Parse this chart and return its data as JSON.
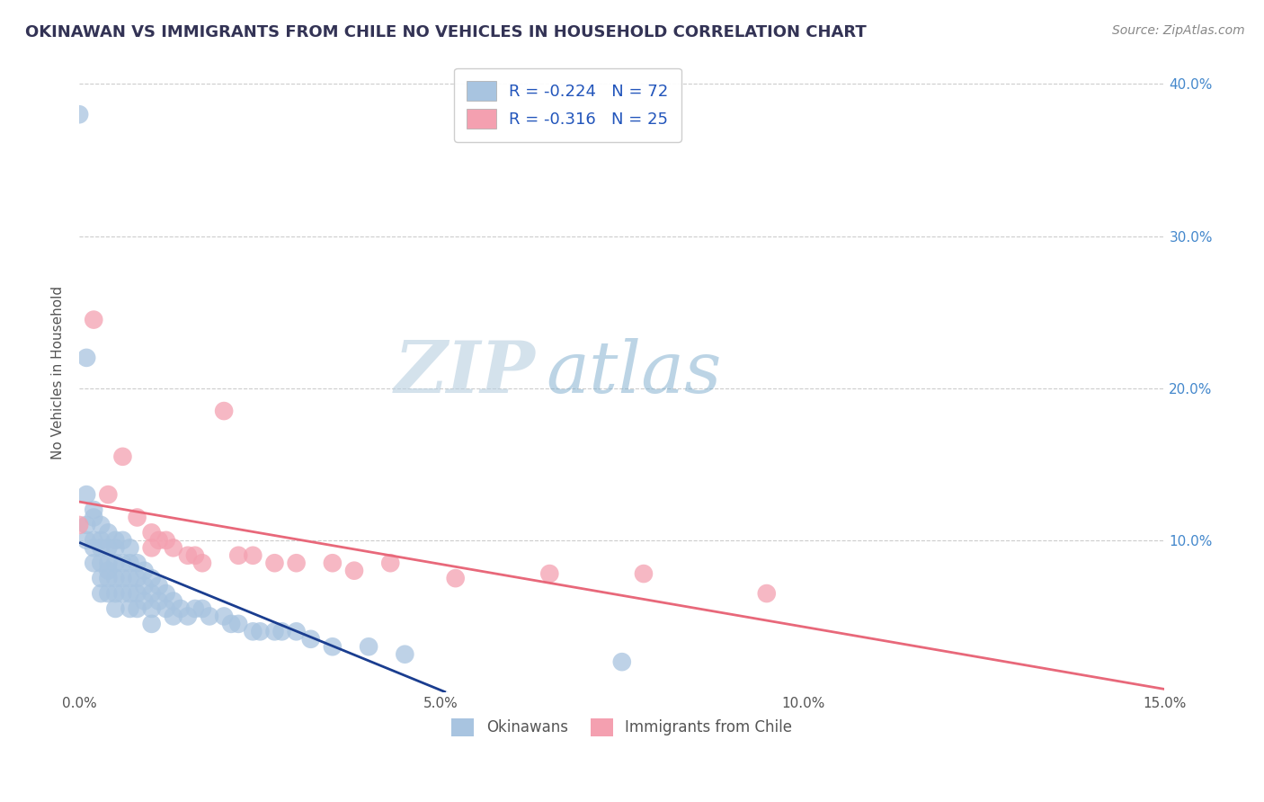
{
  "title": "OKINAWAN VS IMMIGRANTS FROM CHILE NO VEHICLES IN HOUSEHOLD CORRELATION CHART",
  "source": "Source: ZipAtlas.com",
  "ylabel": "No Vehicles in Household",
  "xlabel": "",
  "xlim": [
    0.0,
    0.15
  ],
  "ylim": [
    0.0,
    0.42
  ],
  "xticks": [
    0.0,
    0.05,
    0.1,
    0.15
  ],
  "xticklabels": [
    "0.0%",
    "5.0%",
    "10.0%",
    "15.0%"
  ],
  "yticks": [
    0.1,
    0.2,
    0.3,
    0.4
  ],
  "yticklabels_right": [
    "10.0%",
    "20.0%",
    "30.0%",
    "40.0%"
  ],
  "okinawan_R": -0.224,
  "okinawan_N": 72,
  "chile_R": -0.316,
  "chile_N": 25,
  "okinawan_color": "#a8c4e0",
  "chile_color": "#f4a0b0",
  "okinawan_line_color": "#1a3d8f",
  "chile_line_color": "#e8687a",
  "okinawan_line_dash": "#c8d8ee",
  "background_color": "#ffffff",
  "grid_color": "#cccccc",
  "watermark_zip": "ZIP",
  "watermark_atlas": "atlas",
  "legend_labels": [
    "Okinawans",
    "Immigrants from Chile"
  ],
  "okinawan_x": [
    0.0,
    0.001,
    0.001,
    0.001,
    0.001,
    0.002,
    0.002,
    0.002,
    0.002,
    0.002,
    0.003,
    0.003,
    0.003,
    0.003,
    0.003,
    0.003,
    0.004,
    0.004,
    0.004,
    0.004,
    0.004,
    0.004,
    0.005,
    0.005,
    0.005,
    0.005,
    0.005,
    0.005,
    0.006,
    0.006,
    0.006,
    0.006,
    0.007,
    0.007,
    0.007,
    0.007,
    0.007,
    0.008,
    0.008,
    0.008,
    0.008,
    0.009,
    0.009,
    0.009,
    0.01,
    0.01,
    0.01,
    0.01,
    0.011,
    0.011,
    0.012,
    0.012,
    0.013,
    0.013,
    0.014,
    0.015,
    0.016,
    0.017,
    0.018,
    0.02,
    0.021,
    0.022,
    0.024,
    0.025,
    0.027,
    0.028,
    0.03,
    0.032,
    0.035,
    0.04,
    0.045,
    0.075
  ],
  "okinawan_y": [
    0.38,
    0.11,
    0.13,
    0.1,
    0.22,
    0.12,
    0.095,
    0.115,
    0.085,
    0.1,
    0.11,
    0.095,
    0.1,
    0.085,
    0.075,
    0.065,
    0.105,
    0.095,
    0.085,
    0.08,
    0.075,
    0.065,
    0.1,
    0.095,
    0.085,
    0.075,
    0.065,
    0.055,
    0.1,
    0.085,
    0.075,
    0.065,
    0.095,
    0.085,
    0.075,
    0.065,
    0.055,
    0.085,
    0.075,
    0.065,
    0.055,
    0.08,
    0.07,
    0.06,
    0.075,
    0.065,
    0.055,
    0.045,
    0.07,
    0.06,
    0.065,
    0.055,
    0.06,
    0.05,
    0.055,
    0.05,
    0.055,
    0.055,
    0.05,
    0.05,
    0.045,
    0.045,
    0.04,
    0.04,
    0.04,
    0.04,
    0.04,
    0.035,
    0.03,
    0.03,
    0.025,
    0.02
  ],
  "chile_x": [
    0.0,
    0.002,
    0.004,
    0.006,
    0.008,
    0.01,
    0.01,
    0.011,
    0.012,
    0.013,
    0.015,
    0.016,
    0.017,
    0.02,
    0.022,
    0.024,
    0.027,
    0.03,
    0.035,
    0.038,
    0.043,
    0.052,
    0.065,
    0.078,
    0.095
  ],
  "chile_y": [
    0.11,
    0.245,
    0.13,
    0.155,
    0.115,
    0.105,
    0.095,
    0.1,
    0.1,
    0.095,
    0.09,
    0.09,
    0.085,
    0.185,
    0.09,
    0.09,
    0.085,
    0.085,
    0.085,
    0.08,
    0.085,
    0.075,
    0.078,
    0.078,
    0.065
  ]
}
